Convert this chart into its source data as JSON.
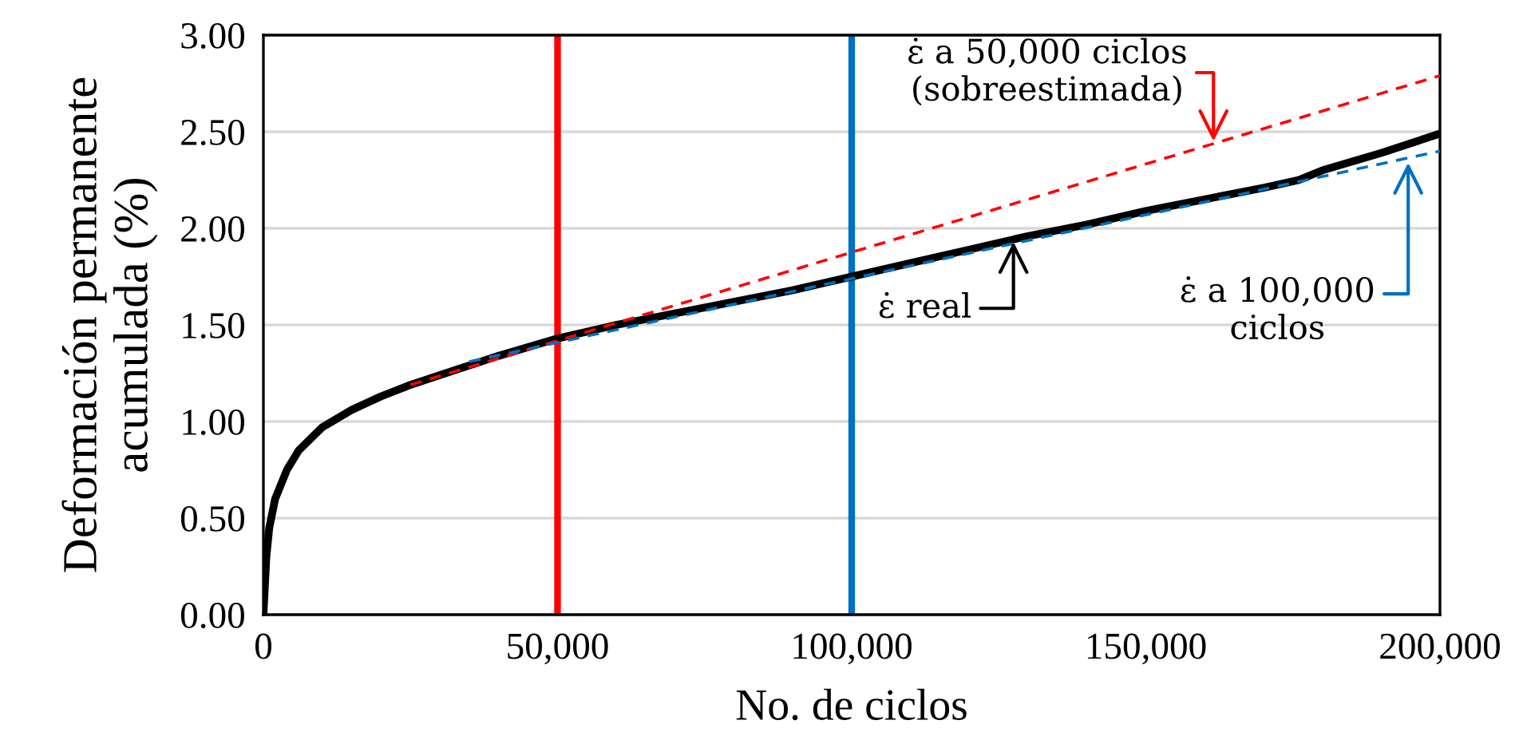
{
  "chart_data": {
    "type": "line",
    "xlabel": "No. de ciclos",
    "ylabel": "Deformación permanente\nacumulada (%)",
    "xlim": [
      0,
      200000
    ],
    "ylim": [
      0,
      3
    ],
    "xticks": [
      0,
      {
        "value": 50000,
        "label": "50,000"
      },
      {
        "value": 100000,
        "label": "100,000"
      },
      {
        "value": 150000,
        "label": "150,000"
      },
      {
        "value": 200000,
        "label": "200,000"
      }
    ],
    "yticks": [
      {
        "value": 0,
        "label": "0.00"
      },
      {
        "value": 0.5,
        "label": "0.50"
      },
      {
        "value": 1,
        "label": "1.00"
      },
      {
        "value": 1.5,
        "label": "1.50"
      },
      {
        "value": 2,
        "label": "2.00"
      },
      {
        "value": 2.5,
        "label": "2.50"
      },
      {
        "value": 3,
        "label": "3.00"
      }
    ],
    "grid": "y",
    "series": [
      {
        "color": "#000000",
        "line_style": "solid",
        "x": [
          0,
          500,
          1000,
          2000,
          4000,
          6000,
          10000,
          15000,
          20000,
          25000,
          30000,
          40000,
          50000,
          60000,
          70000,
          80000,
          90000,
          100000,
          110000,
          120000,
          130000,
          140000,
          150000,
          160000,
          170000,
          176000,
          180000,
          190000,
          200000
        ],
        "values": [
          0,
          0.3,
          0.45,
          0.6,
          0.75,
          0.85,
          0.97,
          1.06,
          1.13,
          1.19,
          1.24,
          1.34,
          1.43,
          1.5,
          1.56,
          1.62,
          1.68,
          1.75,
          1.82,
          1.89,
          1.96,
          2.02,
          2.09,
          2.15,
          2.21,
          2.25,
          2.3,
          2.39,
          2.49
        ]
      },
      {
        "color": "#ff0000",
        "line_style": "dashed",
        "x": [
          25000,
          200000
        ],
        "values": [
          1.19,
          2.79
        ]
      },
      {
        "color": "#0070c0",
        "line_style": "dashed",
        "x": [
          35000,
          200000
        ],
        "values": [
          1.31,
          2.4
        ]
      }
    ],
    "ref_lines": [
      {
        "axis": "x",
        "value": 50000,
        "color": "#ff0000"
      },
      {
        "axis": "x",
        "value": 100000,
        "color": "#0070c0"
      }
    ],
    "annotations": [
      {
        "text": "ε̇ a 50,000 ciclos\n(sobreestimada)",
        "x": 161500,
        "y": 2.45
      },
      {
        "text": "ε̇ real",
        "x": 127500,
        "y": 1.93
      },
      {
        "text": "ε̇ a 100,000\nciclos",
        "x": 194600,
        "y": 2.34
      }
    ]
  }
}
